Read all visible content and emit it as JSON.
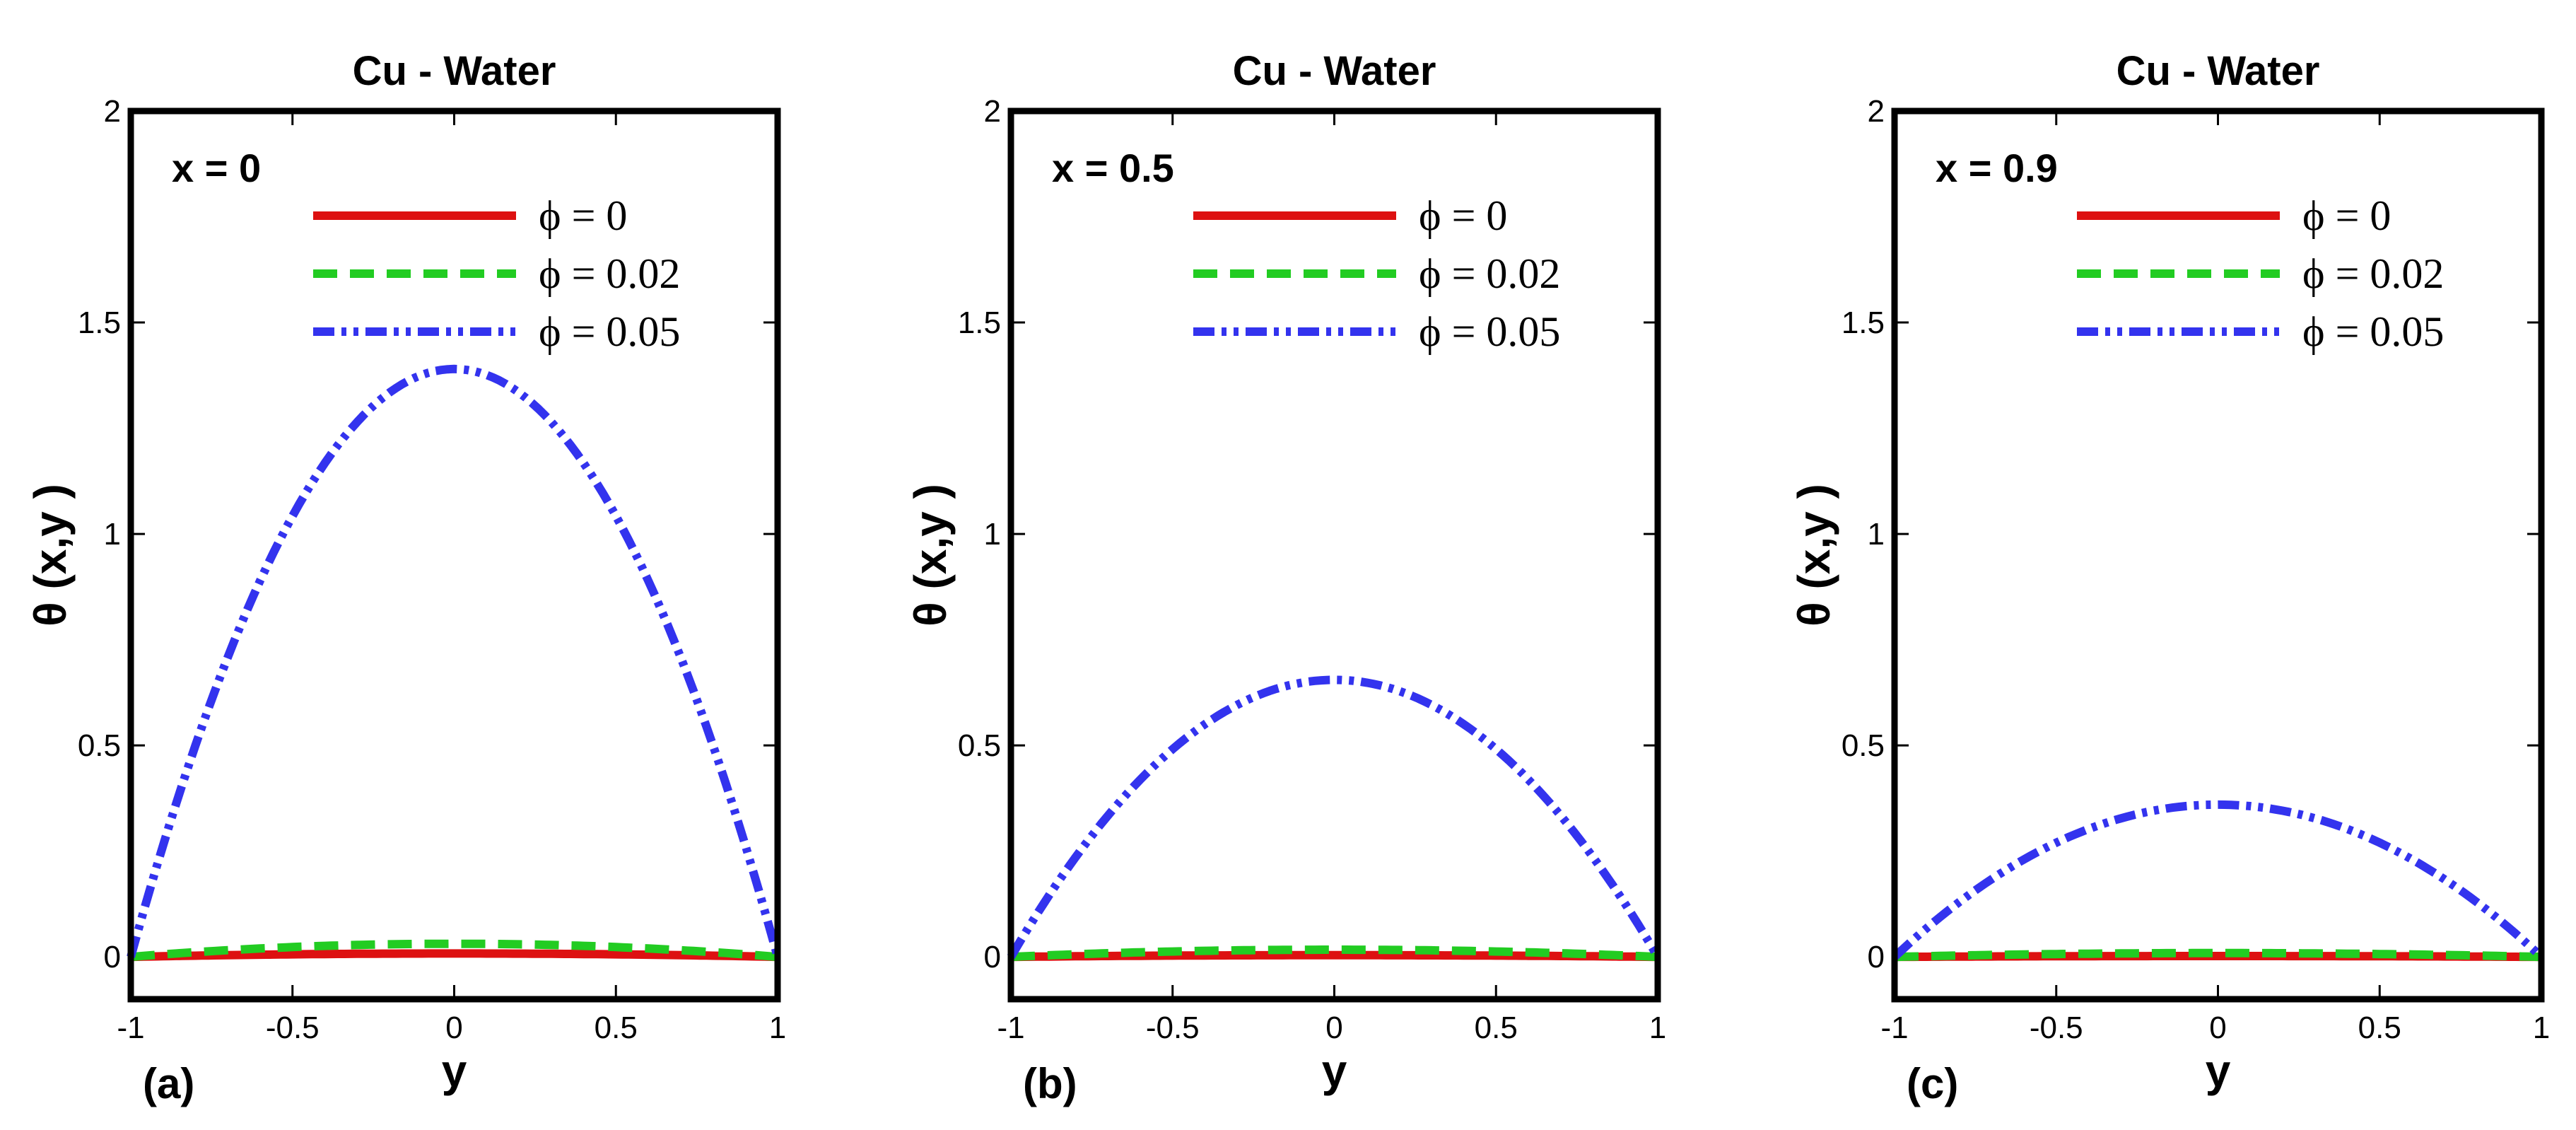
{
  "chart_data": [
    {
      "type": "line",
      "panel_label": "(a)",
      "title": "Cu - Water",
      "condition_label": "x = 0",
      "xlabel": "y",
      "ylabel": "θ (x,y )",
      "xlim": [
        -1,
        1
      ],
      "ylim": [
        -0.1,
        2
      ],
      "xticks": [
        -1,
        -0.5,
        0,
        0.5,
        1
      ],
      "xtick_labels": [
        "-1",
        "-0.5",
        "0",
        "0.5",
        "1"
      ],
      "yticks": [
        0,
        0.5,
        1,
        1.5,
        2
      ],
      "ytick_labels": [
        "0",
        "0.5",
        "1",
        "1.5",
        "2"
      ],
      "x": [
        -1,
        -0.75,
        -0.5,
        -0.25,
        0,
        0.25,
        0.5,
        0.75,
        1
      ],
      "series": [
        {
          "name": "ϕ = 0",
          "color": "#dd1111",
          "style": "solid",
          "values": [
            0,
            0.004,
            0.007,
            0.008,
            0.008,
            0.008,
            0.007,
            0.004,
            0
          ]
        },
        {
          "name": "ϕ = 0.02",
          "color": "#22cc22",
          "style": "dashed",
          "values": [
            0,
            0.019,
            0.025,
            0.029,
            0.031,
            0.029,
            0.025,
            0.019,
            0
          ]
        },
        {
          "name": "ϕ = 0.05",
          "color": "#3333ee",
          "style": "dashdotdot",
          "values": [
            0,
            0.608,
            1.042,
            1.302,
            1.39,
            1.302,
            1.042,
            0.608,
            0
          ]
        }
      ]
    },
    {
      "type": "line",
      "panel_label": "(b)",
      "title": "Cu - Water",
      "condition_label": "x = 0.5",
      "xlabel": "y",
      "ylabel": "θ (x,y )",
      "xlim": [
        -1,
        1
      ],
      "ylim": [
        -0.1,
        2
      ],
      "xticks": [
        -1,
        -0.5,
        0,
        0.5,
        1
      ],
      "xtick_labels": [
        "-1",
        "-0.5",
        "0",
        "0.5",
        "1"
      ],
      "yticks": [
        0,
        0.5,
        1,
        1.5,
        2
      ],
      "ytick_labels": [
        "0",
        "0.5",
        "1",
        "1.5",
        "2"
      ],
      "x": [
        -1,
        -0.75,
        -0.5,
        -0.25,
        0,
        0.25,
        0.5,
        0.75,
        1
      ],
      "series": [
        {
          "name": "ϕ = 0",
          "color": "#dd1111",
          "style": "solid",
          "values": [
            0,
            0.002,
            0.003,
            0.004,
            0.004,
            0.004,
            0.003,
            0.002,
            0
          ]
        },
        {
          "name": "ϕ = 0.02",
          "color": "#22cc22",
          "style": "dashed",
          "values": [
            0,
            0.009,
            0.014,
            0.016,
            0.017,
            0.016,
            0.014,
            0.009,
            0
          ]
        },
        {
          "name": "ϕ = 0.05",
          "color": "#3333ee",
          "style": "dashdotdot",
          "values": [
            0,
            0.287,
            0.491,
            0.614,
            0.655,
            0.614,
            0.491,
            0.287,
            0
          ]
        }
      ]
    },
    {
      "type": "line",
      "panel_label": "(c)",
      "title": "Cu - Water",
      "condition_label": "x = 0.9",
      "xlabel": "y",
      "ylabel": "θ (x,y )",
      "xlim": [
        -1,
        1
      ],
      "ylim": [
        -0.1,
        2
      ],
      "xticks": [
        -1,
        -0.5,
        0,
        0.5,
        1
      ],
      "xtick_labels": [
        "-1",
        "-0.5",
        "0",
        "0.5",
        "1"
      ],
      "yticks": [
        0,
        0.5,
        1,
        1.5,
        2
      ],
      "ytick_labels": [
        "0",
        "0.5",
        "1",
        "1.5",
        "2"
      ],
      "x": [
        -1,
        -0.75,
        -0.5,
        -0.25,
        0,
        0.25,
        0.5,
        0.75,
        1
      ],
      "series": [
        {
          "name": "ϕ = 0",
          "color": "#dd1111",
          "style": "solid",
          "values": [
            0,
            0.001,
            0.002,
            0.002,
            0.002,
            0.002,
            0.002,
            0.001,
            0
          ]
        },
        {
          "name": "ϕ = 0.02",
          "color": "#22cc22",
          "style": "dashed",
          "values": [
            0,
            0.005,
            0.007,
            0.009,
            0.009,
            0.009,
            0.007,
            0.005,
            0
          ]
        },
        {
          "name": "ϕ = 0.05",
          "color": "#3333ee",
          "style": "dashdotdot",
          "values": [
            0,
            0.157,
            0.27,
            0.337,
            0.36,
            0.337,
            0.27,
            0.157,
            0
          ]
        }
      ]
    }
  ]
}
